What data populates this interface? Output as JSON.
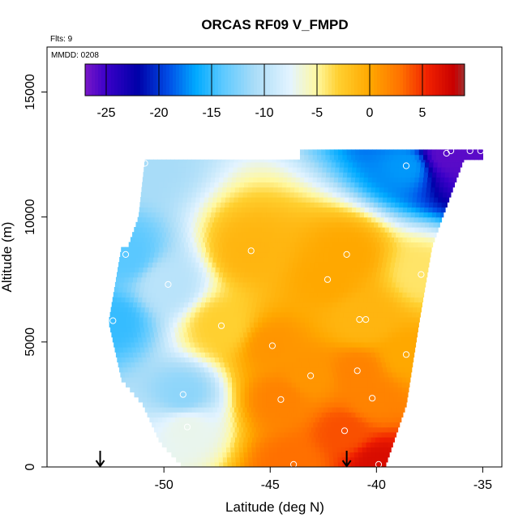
{
  "chart_data": {
    "type": "heatmap",
    "title": "ORCAS RF09 V_FMPD",
    "annotations": {
      "flights": "Flts: 9",
      "date": "MMDD: 0208"
    },
    "xlabel": "Latitude (deg N)",
    "ylabel": "Altitude (m)",
    "xlim": [
      -55.5,
      -34.1
    ],
    "ylim": [
      0,
      16800
    ],
    "x_ticks": [
      -50,
      -45,
      -40,
      -35
    ],
    "x_tick_labels": [
      "-50",
      "-45",
      "-40",
      "-35"
    ],
    "y_ticks": [
      0,
      5000,
      10000,
      15000
    ],
    "y_tick_labels": [
      "0",
      "5000",
      "10000",
      "15000"
    ],
    "colorbar": {
      "range": [
        -27,
        9
      ],
      "ticks": [
        -25,
        -20,
        -15,
        -10,
        -5,
        0,
        5
      ],
      "tick_labels": [
        "-25",
        "-20",
        "-15",
        "-10",
        "-5",
        "0",
        "5"
      ],
      "stops": [
        {
          "v": -27,
          "color": "#7a17c8"
        },
        {
          "v": -25,
          "color": "#3a00c8"
        },
        {
          "v": -22,
          "color": "#0000a8"
        },
        {
          "v": -19,
          "color": "#0050e8"
        },
        {
          "v": -16.5,
          "color": "#00aaff"
        },
        {
          "v": -14,
          "color": "#5ac8ff"
        },
        {
          "v": -11,
          "color": "#a8dcf8"
        },
        {
          "v": -7.5,
          "color": "#e4f4ff"
        },
        {
          "v": -5,
          "color": "#fff8a0"
        },
        {
          "v": -3,
          "color": "#ffd030"
        },
        {
          "v": 0,
          "color": "#ffa800"
        },
        {
          "v": 3,
          "color": "#ff7000"
        },
        {
          "v": 5.5,
          "color": "#f02000"
        },
        {
          "v": 8,
          "color": "#c80000"
        },
        {
          "v": 9,
          "color": "#a03030"
        }
      ]
    },
    "field_sections": [
      {
        "alt_min": 0,
        "alt_max": 5800,
        "lat_left": [
          [
            0,
            -49.1
          ],
          [
            1000,
            -50.2
          ],
          [
            2500,
            -51.0
          ],
          [
            3500,
            -52.0
          ],
          [
            5800,
            -52.6
          ]
        ],
        "lat_right": [
          [
            0,
            -39.6
          ],
          [
            2500,
            -38.6
          ],
          [
            5800,
            -38.0
          ]
        ]
      },
      {
        "alt_min": 5800,
        "alt_max": 8800,
        "lat_left": [
          [
            5800,
            -52.6
          ],
          [
            8800,
            -52.0
          ]
        ],
        "lat_right": [
          [
            5800,
            -38.0
          ],
          [
            8800,
            -37.4
          ]
        ]
      },
      {
        "alt_min": 8800,
        "alt_max": 12300,
        "lat_left": [
          [
            8800,
            -51.7
          ],
          [
            10000,
            -51.2
          ],
          [
            12300,
            -50.9
          ]
        ],
        "lat_right": [
          [
            8800,
            -37.4
          ],
          [
            10000,
            -36.9
          ],
          [
            12300,
            -35.9
          ]
        ]
      },
      {
        "alt_min": 12300,
        "alt_max": 12700,
        "lat_left": [
          [
            12300,
            -43.6
          ],
          [
            12700,
            -43.6
          ]
        ],
        "lat_right": [
          [
            12300,
            -35.0
          ],
          [
            12700,
            -35.0
          ]
        ]
      }
    ],
    "observations": [
      {
        "lat": -36.7,
        "alt": 12550,
        "v": -26
      },
      {
        "lat": -36.5,
        "alt": 12650,
        "v": -26
      },
      {
        "lat": -35.6,
        "alt": 12650,
        "v": -26
      },
      {
        "lat": -35.1,
        "alt": 12650,
        "v": -26
      },
      {
        "lat": -38.6,
        "alt": 12050,
        "v": -17
      },
      {
        "lat": -50.9,
        "alt": 12150,
        "v": -11
      },
      {
        "lat": -51.8,
        "alt": 8500,
        "v": -14
      },
      {
        "lat": -45.9,
        "alt": 8650,
        "v": -1
      },
      {
        "lat": -41.4,
        "alt": 8500,
        "v": 0
      },
      {
        "lat": -42.3,
        "alt": 7500,
        "v": 0
      },
      {
        "lat": -37.9,
        "alt": 7700,
        "v": -4
      },
      {
        "lat": -49.8,
        "alt": 7300,
        "v": -10
      },
      {
        "lat": -52.4,
        "alt": 5850,
        "v": -15
      },
      {
        "lat": -47.3,
        "alt": 5650,
        "v": -3
      },
      {
        "lat": -40.8,
        "alt": 5900,
        "v": -1
      },
      {
        "lat": -40.5,
        "alt": 5900,
        "v": -1
      },
      {
        "lat": -44.9,
        "alt": 4850,
        "v": 1
      },
      {
        "lat": -38.6,
        "alt": 4500,
        "v": 0
      },
      {
        "lat": -40.9,
        "alt": 3850,
        "v": 2
      },
      {
        "lat": -43.1,
        "alt": 3650,
        "v": 1
      },
      {
        "lat": -49.1,
        "alt": 2900,
        "v": -12
      },
      {
        "lat": -44.5,
        "alt": 2700,
        "v": 2
      },
      {
        "lat": -40.2,
        "alt": 2750,
        "v": 2
      },
      {
        "lat": -48.9,
        "alt": 1600,
        "v": -7
      },
      {
        "lat": -41.5,
        "alt": 1450,
        "v": 4
      },
      {
        "lat": -43.9,
        "alt": 100,
        "v": 3
      },
      {
        "lat": -39.9,
        "alt": 100,
        "v": 7
      }
    ],
    "arrows": [
      {
        "lat": -53.0,
        "alt": 0
      },
      {
        "lat": -41.4,
        "alt": 0
      }
    ],
    "grid": false,
    "legend": "colorbar top inside plot"
  }
}
